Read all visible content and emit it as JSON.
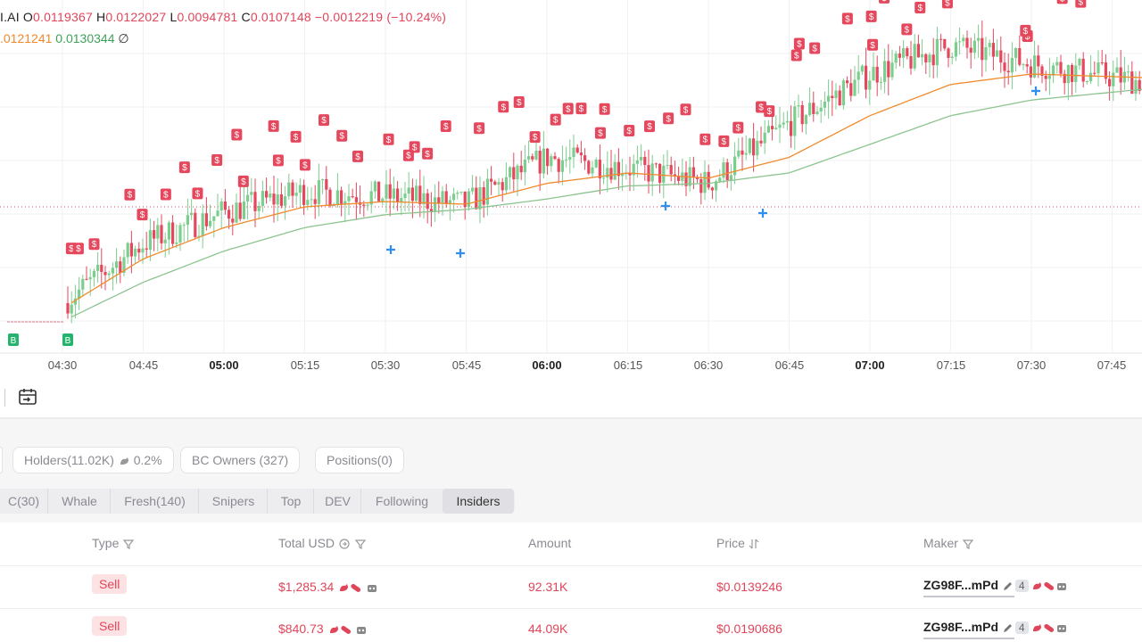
{
  "header": {
    "symbol": "I.AI",
    "open_label": "O",
    "open": "0.0119367",
    "high_label": "H",
    "high": "0.0122027",
    "low_label": "L",
    "low": "0.0094781",
    "close_label": "C",
    "close": "0.0107148",
    "change": "−0.0012219 (−10.24%)",
    "ma_orange": ".0121241",
    "ma_green": "0.0130344",
    "visibility_icon": "∅"
  },
  "x_axis": [
    "04:30",
    "04:45",
    "05:00",
    "05:15",
    "05:30",
    "05:45",
    "06:00",
    "06:15",
    "06:30",
    "06:45",
    "07:00",
    "07:15",
    "07:30",
    "07:45"
  ],
  "chips": {
    "holders": "Holders(11.02K)",
    "holders_pct": "0.2%",
    "bc_owners": "BC Owners (327)",
    "positions": "Positions(0)"
  },
  "tabs": [
    "C(30)",
    "Whale",
    "Fresh(140)",
    "Snipers",
    "Top",
    "DEV",
    "Following",
    "Insiders"
  ],
  "active_tab": "Insiders",
  "table": {
    "headers": {
      "type": "Type",
      "total": "Total USD",
      "amount": "Amount",
      "price": "Price",
      "maker": "Maker"
    },
    "rows": [
      {
        "type": "Sell",
        "total": "$1,285.34",
        "amount": "92.31K",
        "price": "$0.0139246",
        "maker": "ZG98F...mPd",
        "count": "4"
      },
      {
        "type": "Sell",
        "total": "$840.73",
        "amount": "44.09K",
        "price": "$0.0190686",
        "maker": "ZG98F...mPd",
        "count": "4"
      }
    ]
  },
  "colors": {
    "up": "#7cce8e",
    "down": "#e5475d",
    "ma_fast": "#f08a2c",
    "ma_slow": "#8cc48f",
    "accent_red": "#e0455a",
    "buy_marker": "#26b36e"
  },
  "chart_data": {
    "type": "candlestick",
    "x": [
      "04:30",
      "04:45",
      "05:00",
      "05:15",
      "05:30",
      "05:45",
      "06:00",
      "06:15",
      "06:30",
      "06:45",
      "07:00",
      "07:15",
      "07:30",
      "07:45"
    ],
    "close_trend": [
      0.0062,
      0.0085,
      0.0097,
      0.0105,
      0.0103,
      0.01,
      0.0118,
      0.0114,
      0.0108,
      0.0131,
      0.015,
      0.0161,
      0.0154,
      0.0149
    ],
    "series": [
      {
        "values": [
          0.006,
          0.0079,
          0.0091,
          0.0099,
          0.0101,
          0.01,
          0.0108,
          0.0112,
          0.011,
          0.0118,
          0.0134,
          0.0146,
          0.015,
          0.0149
        ]
      },
      {
        "values": [
          0.0055,
          0.007,
          0.0082,
          0.0091,
          0.0096,
          0.0098,
          0.0102,
          0.0107,
          0.0108,
          0.0112,
          0.0123,
          0.0134,
          0.014,
          0.0143
        ]
      }
    ],
    "sell_markers": 58,
    "buy_markers": 2
  }
}
